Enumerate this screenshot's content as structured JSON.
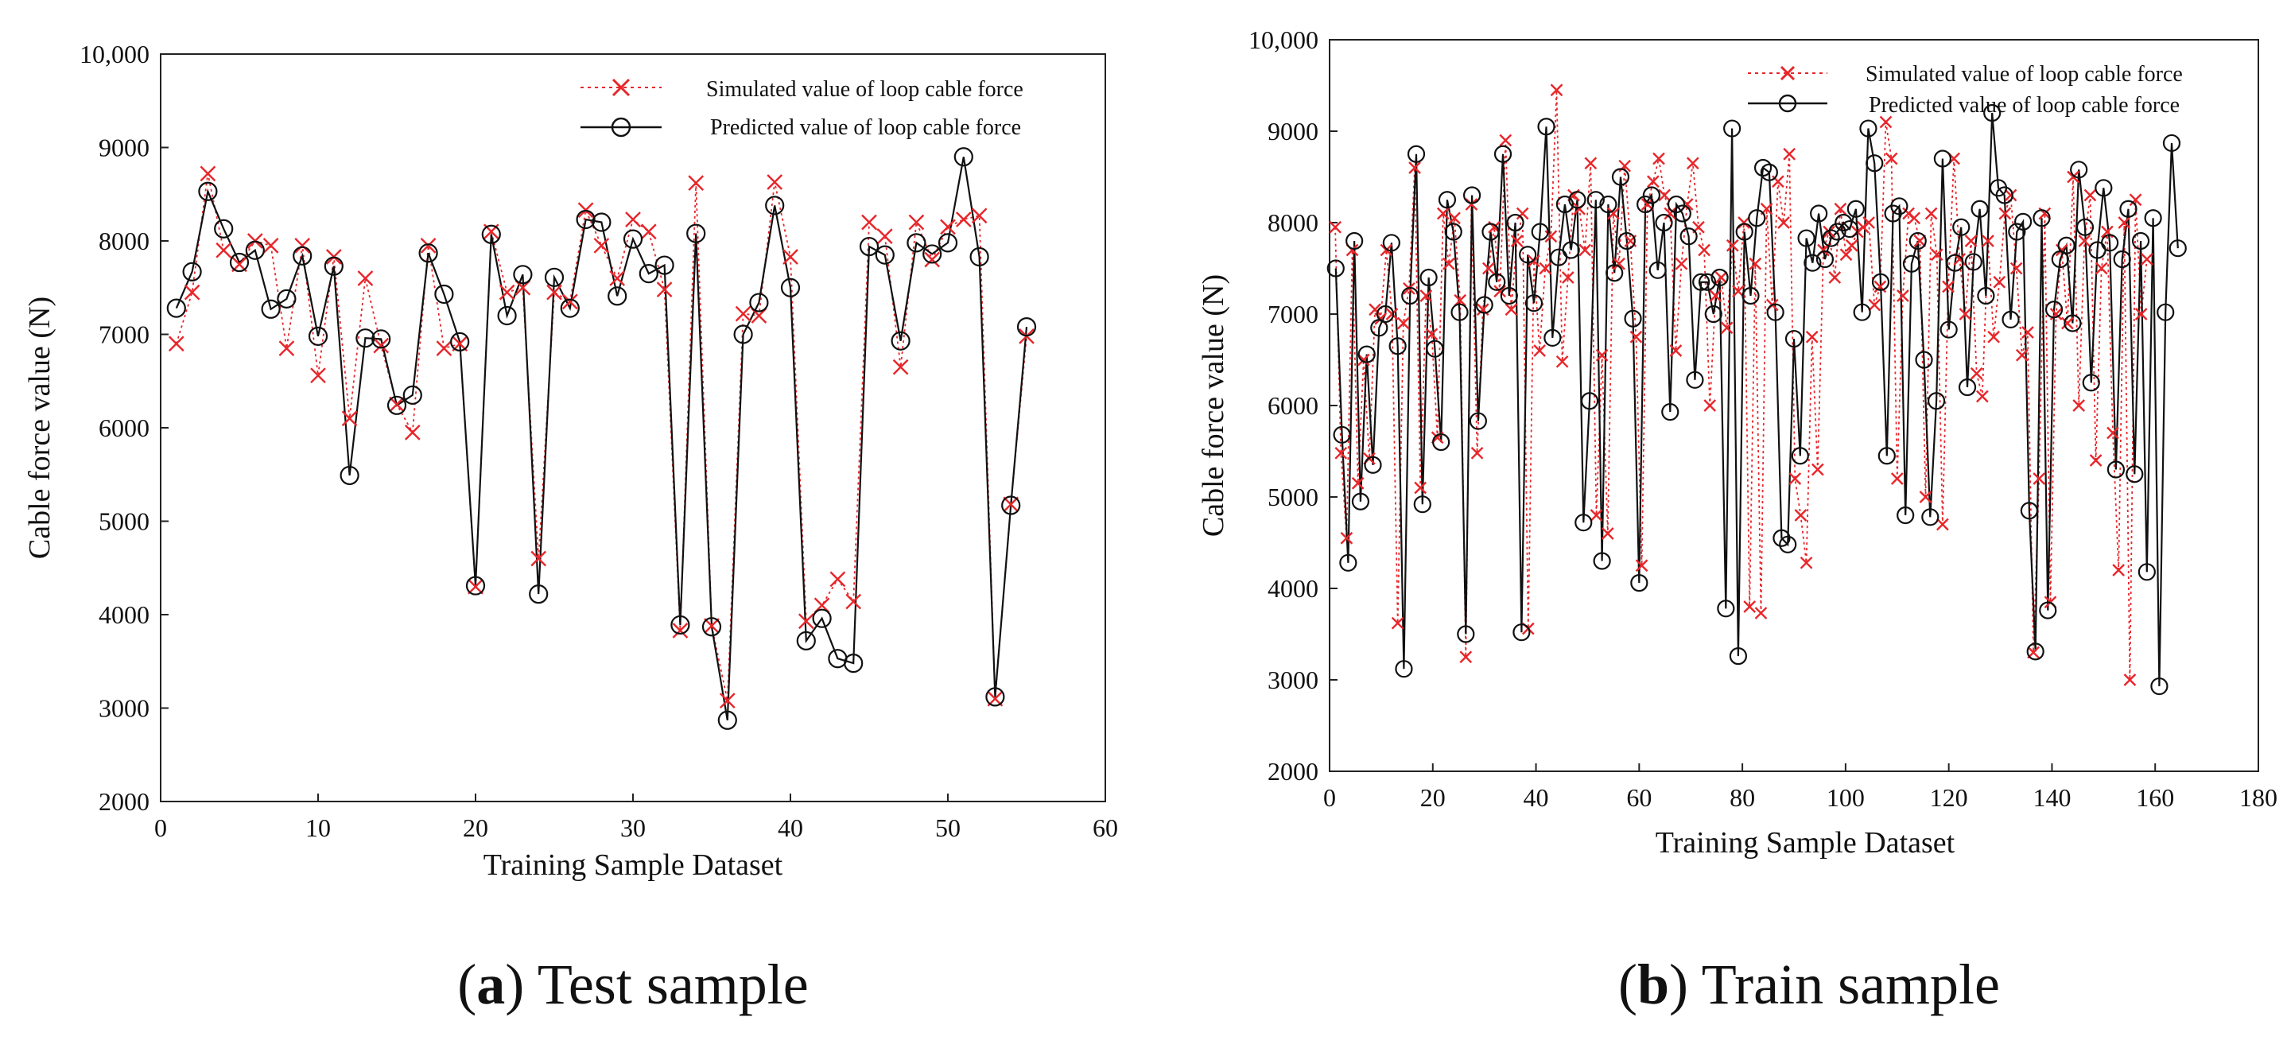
{
  "chart_data": [
    {
      "type": "line",
      "panel_id": "a",
      "caption_letter": "a",
      "caption_text": "Test sample",
      "xlabel": "Training Sample Dataset",
      "ylabel": "Cable force value (N)",
      "xlim": [
        0,
        60
      ],
      "ylim": [
        2000,
        10000
      ],
      "xticks": [
        0,
        10,
        20,
        30,
        40,
        50,
        60
      ],
      "yticks": [
        2000,
        3000,
        4000,
        5000,
        6000,
        7000,
        8000,
        9000,
        10000
      ],
      "ytick_labels": [
        "2000",
        "3000",
        "4000",
        "5000",
        "6000",
        "7000",
        "8000",
        "9000",
        "10,000"
      ],
      "grid": false,
      "legend_position": "top-right",
      "series": [
        {
          "name": "Simulated value of loop cable force",
          "style": "dotted-red-x",
          "color": "#e8262a",
          "values": [
            6900,
            7450,
            8720,
            7900,
            7750,
            8000,
            7950,
            6850,
            7950,
            6560,
            7830,
            6100,
            7600,
            6880,
            6250,
            5950,
            7950,
            6850,
            6900,
            4300,
            8100,
            7450,
            7500,
            4600,
            7450,
            7350,
            8330,
            7950,
            7600,
            8230,
            8100,
            7480,
            3830,
            8620,
            3880,
            3080,
            7220,
            7200,
            8630,
            7830,
            3930,
            4100,
            4380,
            4140,
            8200,
            8050,
            6650,
            8200,
            7800,
            8150,
            8230,
            8270,
            3100,
            5180,
            6980
          ]
        },
        {
          "name": "Predicted value of loop cable force",
          "style": "solid-black-circle",
          "color": "#111111",
          "values": [
            7280,
            7670,
            8530,
            8130,
            7770,
            7900,
            7270,
            7380,
            7840,
            6980,
            7730,
            5490,
            6960,
            6950,
            6240,
            6350,
            7870,
            7430,
            6920,
            4310,
            8070,
            7200,
            7640,
            4220,
            7610,
            7280,
            8230,
            8200,
            7410,
            8020,
            7650,
            7740,
            3890,
            8080,
            3870,
            2870,
            7000,
            7340,
            8380,
            7500,
            3720,
            3960,
            3530,
            3480,
            7940,
            7850,
            6930,
            7980,
            7860,
            7980,
            8900,
            7830,
            3120,
            5170,
            7080
          ]
        }
      ]
    },
    {
      "type": "line",
      "panel_id": "b",
      "caption_letter": "b",
      "caption_text": "Train sample",
      "xlabel": "Training Sample Dataset",
      "ylabel": "Cable force value (N)",
      "xlim": [
        0,
        180
      ],
      "ylim": [
        2000,
        10000
      ],
      "xticks": [
        0,
        20,
        40,
        60,
        80,
        100,
        120,
        140,
        160,
        180
      ],
      "yticks": [
        2000,
        3000,
        4000,
        5000,
        6000,
        7000,
        8000,
        9000,
        10000
      ],
      "ytick_labels": [
        "2000",
        "3000",
        "4000",
        "5000",
        "6000",
        "7000",
        "8000",
        "9000",
        "10,000"
      ],
      "grid": false,
      "legend_position": "top-right",
      "series": [
        {
          "name": "Simulated value of loop cable force",
          "style": "dotted-red-x",
          "color": "#e8262a",
          "values": [
            7950,
            5480,
            4550,
            7700,
            5150,
            6500,
            5420,
            7050,
            6950,
            7700,
            7000,
            3620,
            6900,
            7280,
            8600,
            5100,
            7200,
            6780,
            5650,
            8100,
            7550,
            8050,
            7150,
            3250,
            8200,
            5480,
            7050,
            7500,
            7950,
            7250,
            8900,
            7050,
            7800,
            8100,
            3560,
            7580,
            6600,
            7500,
            7850,
            9450,
            6480,
            7400,
            8300,
            8150,
            7700,
            8650,
            4800,
            6550,
            4600,
            8100,
            7550,
            8620,
            7800,
            6750,
            4250,
            8200,
            8450,
            8700,
            8300,
            8100,
            6600,
            7550,
            8200,
            8650,
            7950,
            7700,
            6000,
            7200,
            7400,
            6850,
            7750,
            7250,
            8000,
            3800,
            7550,
            3730,
            8150,
            7100,
            8450,
            8000,
            8750,
            5200,
            4800,
            4280,
            6750,
            5300,
            7700,
            7900,
            7400,
            8150,
            7650,
            7750,
            7900,
            7950,
            8000,
            7100,
            7300,
            9100,
            8700,
            5200,
            7200,
            8100,
            8050,
            7800,
            5000,
            8100,
            7650,
            4700,
            7300,
            8700,
            7600,
            7000,
            7800,
            6350,
            6100,
            7800,
            6750,
            7350,
            8100,
            8300,
            7500,
            6550,
            6800,
            3300,
            5200,
            8100,
            3850,
            7000,
            7700,
            6900,
            8500,
            6000,
            7800,
            8300,
            5400,
            7500,
            7900,
            5700,
            4200,
            8000,
            3000,
            8250,
            7000,
            7600
          ],
          "x_scale": 1.1
        },
        {
          "name": "Predicted value of loop cable force",
          "style": "solid-black-circle",
          "color": "#111111",
          "values": [
            7500,
            5680,
            4280,
            7800,
            4950,
            6560,
            5350,
            6850,
            7000,
            7780,
            6650,
            3120,
            7200,
            8750,
            4920,
            7400,
            6620,
            5600,
            8250,
            7900,
            7020,
            3500,
            8300,
            5830,
            7100,
            7900,
            7350,
            8750,
            7200,
            8000,
            3520,
            7650,
            7120,
            7900,
            9050,
            6740,
            7620,
            8200,
            7700,
            8250,
            4720,
            6050,
            8250,
            4300,
            8200,
            7450,
            8500,
            7800,
            6950,
            4060,
            8200,
            8300,
            7480,
            8000,
            5930,
            8200,
            8100,
            7850,
            6280,
            7350,
            7350,
            7000,
            7400,
            3780,
            9030,
            3260,
            7900,
            7200,
            8050,
            8600,
            8550,
            7020,
            4550,
            4480,
            6730,
            5450,
            7830,
            7560,
            8100,
            7600,
            7830,
            7900,
            8000,
            7930,
            8150,
            7020,
            9030,
            8650,
            7350,
            5450,
            8100,
            8180,
            4800,
            7550,
            7800,
            6500,
            4780,
            6050,
            8700,
            6830,
            7560,
            7950,
            6200,
            7570,
            8150,
            7200,
            9200,
            8380,
            8300,
            6940,
            7900,
            8010,
            4850,
            3310,
            8050,
            3760,
            7050,
            7600,
            7750,
            6900,
            8580,
            7950,
            6250,
            7700,
            8380,
            7780,
            5300,
            7600,
            8150,
            5250,
            7800,
            4180,
            8050,
            2930,
            7020,
            8870,
            7720
          ],
          "x_scale": 1.2
        }
      ]
    }
  ]
}
